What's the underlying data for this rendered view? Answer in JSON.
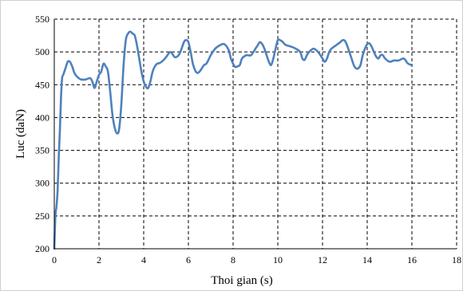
{
  "chart_data": {
    "type": "line",
    "title": "",
    "xlabel": "Thoi gian (s)",
    "ylabel": "Luc (daN)",
    "xlim": [
      0,
      18
    ],
    "ylim": [
      200,
      550
    ],
    "x_ticks": [
      0,
      2,
      4,
      6,
      8,
      10,
      12,
      14,
      16,
      18
    ],
    "y_ticks": [
      200,
      250,
      300,
      350,
      400,
      450,
      500,
      550
    ],
    "x_tick_labels": [
      "0",
      "2",
      "4",
      "6",
      "8",
      "10",
      "12",
      "14",
      "16",
      "18"
    ],
    "y_tick_labels": [
      "200",
      "250",
      "300",
      "350",
      "400",
      "450",
      "500",
      "550"
    ],
    "grid": true,
    "grid_style": "dashed",
    "legend": "none",
    "series": [
      {
        "color": "#4f81bd",
        "x": [
          0.0,
          0.05,
          0.1,
          0.15,
          0.2,
          0.25,
          0.3,
          0.35,
          0.4,
          0.5,
          0.6,
          0.7,
          0.8,
          0.9,
          1.0,
          1.1,
          1.2,
          1.4,
          1.6,
          1.7,
          1.8,
          1.9,
          2.0,
          2.1,
          2.2,
          2.3,
          2.4,
          2.5,
          2.6,
          2.7,
          2.8,
          2.9,
          3.0,
          3.1,
          3.2,
          3.3,
          3.4,
          3.5,
          3.6,
          3.7,
          3.8,
          3.9,
          4.0,
          4.1,
          4.2,
          4.3,
          4.4,
          4.5,
          4.6,
          4.7,
          4.8,
          4.9,
          5.0,
          5.2,
          5.4,
          5.6,
          5.8,
          5.9,
          6.0,
          6.1,
          6.2,
          6.3,
          6.4,
          6.5,
          6.6,
          6.7,
          6.8,
          6.9,
          7.0,
          7.2,
          7.4,
          7.6,
          7.8,
          7.9,
          8.0,
          8.1,
          8.2,
          8.3,
          8.4,
          8.6,
          8.8,
          9.0,
          9.1,
          9.2,
          9.3,
          9.4,
          9.5,
          9.6,
          9.7,
          9.8,
          9.9,
          10.0,
          10.1,
          10.2,
          10.3,
          10.4,
          10.6,
          10.8,
          11.0,
          11.1,
          11.2,
          11.3,
          11.4,
          11.6,
          11.8,
          12.0,
          12.1,
          12.2,
          12.3,
          12.4,
          12.6,
          12.8,
          12.9,
          13.0,
          13.1,
          13.2,
          13.3,
          13.4,
          13.5,
          13.6,
          13.7,
          13.8,
          13.9,
          14.0,
          14.1,
          14.2,
          14.3,
          14.4,
          14.5,
          14.6,
          14.7,
          14.8,
          15.0,
          15.2,
          15.4,
          15.6,
          15.7,
          15.8,
          15.9,
          16.0
        ],
        "y": [
          200,
          250,
          265,
          290,
          340,
          380,
          430,
          460,
          465,
          475,
          485,
          485,
          478,
          468,
          463,
          460,
          458,
          458,
          460,
          455,
          445,
          455,
          465,
          470,
          482,
          478,
          470,
          440,
          405,
          385,
          376,
          382,
          420,
          480,
          518,
          528,
          531,
          528,
          525,
          510,
          490,
          470,
          455,
          447,
          445,
          455,
          470,
          478,
          482,
          483,
          485,
          488,
          492,
          500,
          492,
          497,
          515,
          518,
          515,
          500,
          482,
          472,
          468,
          470,
          475,
          480,
          482,
          488,
          495,
          505,
          510,
          512,
          503,
          490,
          482,
          477,
          478,
          480,
          490,
          495,
          495,
          505,
          510,
          515,
          512,
          505,
          495,
          485,
          480,
          490,
          505,
          518,
          518,
          516,
          512,
          510,
          508,
          505,
          500,
          490,
          488,
          495,
          500,
          505,
          500,
          490,
          485,
          490,
          500,
          505,
          510,
          515,
          518,
          517,
          510,
          500,
          490,
          480,
          475,
          475,
          480,
          495,
          505,
          512,
          513,
          508,
          500,
          493,
          490,
          495,
          495,
          490,
          485,
          487,
          487,
          490,
          488,
          483,
          481,
          480
        ]
      }
    ]
  }
}
